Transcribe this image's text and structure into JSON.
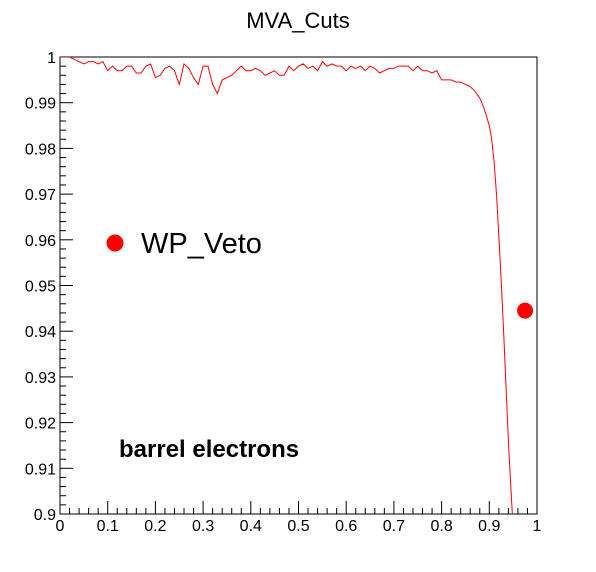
{
  "chart_data": {
    "type": "line",
    "title": "MVA_Cuts",
    "xlabel": "",
    "ylabel": "",
    "xlim": [
      0,
      1
    ],
    "ylim": [
      0.9,
      1
    ],
    "x_tick_labels": [
      "0",
      "0.1",
      "0.2",
      "0.3",
      "0.4",
      "0.5",
      "0.6",
      "0.7",
      "0.8",
      "0.9",
      "1"
    ],
    "y_tick_labels": [
      "0.9",
      "0.91",
      "0.92",
      "0.93",
      "0.94",
      "0.95",
      "0.96",
      "0.97",
      "0.98",
      "0.99",
      "1"
    ],
    "grid": false,
    "series": [
      {
        "color": "#ff0000",
        "x": [
          0.0,
          0.01,
          0.02,
          0.03,
          0.04,
          0.05,
          0.06,
          0.07,
          0.08,
          0.09,
          0.1,
          0.11,
          0.12,
          0.13,
          0.14,
          0.15,
          0.16,
          0.17,
          0.18,
          0.19,
          0.2,
          0.21,
          0.22,
          0.23,
          0.24,
          0.25,
          0.26,
          0.27,
          0.28,
          0.29,
          0.3,
          0.31,
          0.32,
          0.33,
          0.34,
          0.35,
          0.36,
          0.37,
          0.38,
          0.39,
          0.4,
          0.41,
          0.42,
          0.43,
          0.44,
          0.45,
          0.46,
          0.47,
          0.48,
          0.49,
          0.5,
          0.51,
          0.52,
          0.53,
          0.54,
          0.55,
          0.56,
          0.57,
          0.58,
          0.59,
          0.6,
          0.61,
          0.62,
          0.63,
          0.64,
          0.65,
          0.66,
          0.67,
          0.68,
          0.69,
          0.7,
          0.71,
          0.72,
          0.73,
          0.74,
          0.75,
          0.76,
          0.77,
          0.78,
          0.79,
          0.8,
          0.81,
          0.82,
          0.83,
          0.84,
          0.85,
          0.86,
          0.87,
          0.88,
          0.89,
          0.9,
          0.905,
          0.91,
          0.915,
          0.92,
          0.925,
          0.93,
          0.935,
          0.94,
          0.945,
          0.95
        ],
        "y": [
          1.0,
          1.0,
          1.0,
          0.9995,
          0.999,
          0.9985,
          0.999,
          0.999,
          0.9985,
          0.999,
          0.997,
          0.998,
          0.997,
          0.997,
          0.998,
          0.998,
          0.9965,
          0.9965,
          0.998,
          0.9985,
          0.9955,
          0.996,
          0.9975,
          0.998,
          0.997,
          0.994,
          0.9985,
          0.9975,
          0.9955,
          0.994,
          0.998,
          0.998,
          0.994,
          0.992,
          0.995,
          0.9955,
          0.996,
          0.997,
          0.998,
          0.997,
          0.997,
          0.9975,
          0.997,
          0.996,
          0.9965,
          0.997,
          0.996,
          0.996,
          0.998,
          0.997,
          0.998,
          0.9985,
          0.9975,
          0.998,
          0.997,
          0.999,
          0.998,
          0.9985,
          0.998,
          0.998,
          0.997,
          0.998,
          0.9975,
          0.998,
          0.997,
          0.998,
          0.9975,
          0.9965,
          0.997,
          0.9975,
          0.9975,
          0.998,
          0.998,
          0.998,
          0.997,
          0.998,
          0.997,
          0.997,
          0.9965,
          0.997,
          0.995,
          0.995,
          0.995,
          0.9945,
          0.9945,
          0.994,
          0.9935,
          0.9925,
          0.991,
          0.9885,
          0.985,
          0.982,
          0.977,
          0.97,
          0.961,
          0.951,
          0.94,
          0.928,
          0.916,
          0.906,
          0.897
        ]
      },
      {
        "name": "WP_Veto",
        "color": "#ff0000",
        "marker": "circle",
        "points": [
          {
            "x": 0.975,
            "y": 0.9445
          }
        ]
      }
    ],
    "legend": {
      "entries": [
        "WP_Veto"
      ],
      "placement": "middle-left"
    },
    "annotations": [
      "barrel electrons"
    ]
  }
}
